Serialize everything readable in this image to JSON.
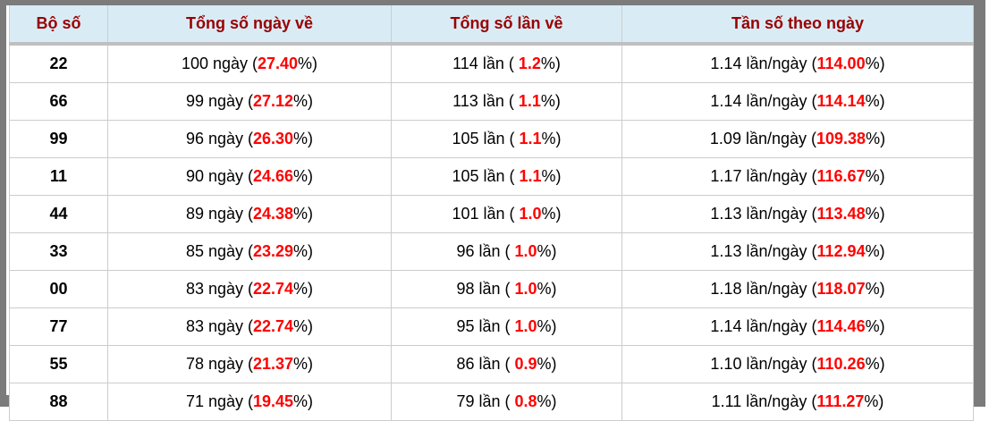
{
  "table": {
    "columns": [
      "Bộ số",
      "Tổng số ngày về",
      "Tổng số lần về",
      "Tần số theo ngày"
    ],
    "rows": [
      {
        "pair": "22",
        "days": {
          "pre": "100 ngày (",
          "val": "27.40",
          "post": "%)"
        },
        "times": {
          "pre": "114 lần ( ",
          "val": "1.2",
          "post": "%)"
        },
        "freq": {
          "pre": "1.14 lần/ngày (",
          "val": "114.00",
          "post": "%)"
        }
      },
      {
        "pair": "66",
        "days": {
          "pre": "99 ngày (",
          "val": "27.12",
          "post": "%)"
        },
        "times": {
          "pre": "113 lần ( ",
          "val": "1.1",
          "post": "%)"
        },
        "freq": {
          "pre": "1.14 lần/ngày (",
          "val": "114.14",
          "post": "%)"
        }
      },
      {
        "pair": "99",
        "days": {
          "pre": "96 ngày (",
          "val": "26.30",
          "post": "%)"
        },
        "times": {
          "pre": "105 lần ( ",
          "val": "1.1",
          "post": "%)"
        },
        "freq": {
          "pre": "1.09 lần/ngày (",
          "val": "109.38",
          "post": "%)"
        }
      },
      {
        "pair": "11",
        "days": {
          "pre": "90 ngày (",
          "val": "24.66",
          "post": "%)"
        },
        "times": {
          "pre": "105 lần ( ",
          "val": "1.1",
          "post": "%)"
        },
        "freq": {
          "pre": "1.17 lần/ngày (",
          "val": "116.67",
          "post": "%)"
        }
      },
      {
        "pair": "44",
        "days": {
          "pre": "89 ngày (",
          "val": "24.38",
          "post": "%)"
        },
        "times": {
          "pre": "101 lần ( ",
          "val": "1.0",
          "post": "%)"
        },
        "freq": {
          "pre": "1.13 lần/ngày (",
          "val": "113.48",
          "post": "%)"
        }
      },
      {
        "pair": "33",
        "days": {
          "pre": "85 ngày (",
          "val": "23.29",
          "post": "%)"
        },
        "times": {
          "pre": "96 lần ( ",
          "val": "1.0",
          "post": "%)"
        },
        "freq": {
          "pre": "1.13 lần/ngày (",
          "val": "112.94",
          "post": "%)"
        }
      },
      {
        "pair": "00",
        "days": {
          "pre": "83 ngày (",
          "val": "22.74",
          "post": "%)"
        },
        "times": {
          "pre": "98 lần ( ",
          "val": "1.0",
          "post": "%)"
        },
        "freq": {
          "pre": "1.18 lần/ngày (",
          "val": "118.07",
          "post": "%)"
        }
      },
      {
        "pair": "77",
        "days": {
          "pre": "83 ngày (",
          "val": "22.74",
          "post": "%)"
        },
        "times": {
          "pre": "95 lần ( ",
          "val": "1.0",
          "post": "%)"
        },
        "freq": {
          "pre": "1.14 lần/ngày (",
          "val": "114.46",
          "post": "%)"
        }
      },
      {
        "pair": "55",
        "days": {
          "pre": "78 ngày (",
          "val": "21.37",
          "post": "%)"
        },
        "times": {
          "pre": "86 lần ( ",
          "val": "0.9",
          "post": "%)"
        },
        "freq": {
          "pre": "1.10 lần/ngày (",
          "val": "110.26",
          "post": "%)"
        }
      },
      {
        "pair": "88",
        "days": {
          "pre": "71 ngày (",
          "val": "19.45",
          "post": "%)"
        },
        "times": {
          "pre": "79 lần ( ",
          "val": "0.8",
          "post": "%)"
        },
        "freq": {
          "pre": "1.11 lần/ngày (",
          "val": "111.27",
          "post": "%)"
        }
      }
    ]
  },
  "colors": {
    "header_text": "#990000",
    "highlight": "#ff0000",
    "header_bg": "#d9ecf6",
    "frame": "#7b7b7b",
    "grid": "#cccccc",
    "silver": "#bfbfbf"
  }
}
